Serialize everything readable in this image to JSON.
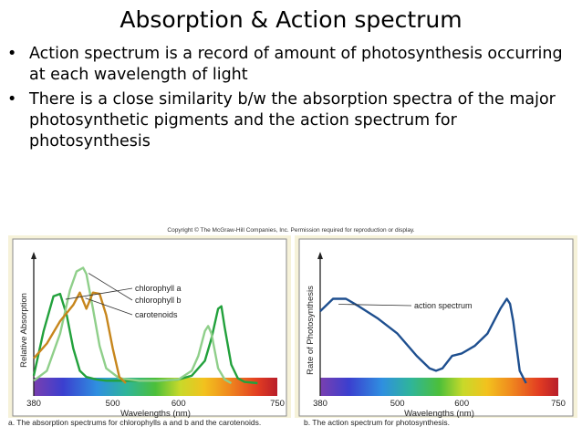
{
  "title": "Absorption & Action spectrum",
  "bullets": [
    "Action spectrum is a record of amount of photosynthesis occurring at each wavelength of light",
    "There is a close similarity b/w the absorption spectra of the major photosynthetic pigments and the action spectrum for photosynthesis"
  ],
  "copyright": "Copyright © The McGraw-Hill Companies, Inc. Permission required for reproduction or display.",
  "chart_data": [
    {
      "type": "line",
      "caption": "a. The absorption spectrums for chlorophylls a and b and the carotenoids.",
      "xlabel": "Wavelengths (nm)",
      "ylabel": "Relative Absorption",
      "xlim": [
        380,
        750
      ],
      "ylim": [
        0,
        1
      ],
      "xticks": [
        380,
        500,
        600,
        750
      ],
      "legend_position": "annotations with leader lines, top-right",
      "series": [
        {
          "name": "chlorophyll a",
          "color": "#22a13c",
          "x": [
            380,
            395,
            410,
            420,
            430,
            440,
            450,
            460,
            475,
            490,
            510,
            540,
            570,
            600,
            620,
            640,
            650,
            660,
            665,
            670,
            680,
            690,
            700,
            720
          ],
          "y": [
            0.06,
            0.42,
            0.7,
            0.72,
            0.55,
            0.28,
            0.1,
            0.05,
            0.03,
            0.02,
            0.02,
            0.02,
            0.02,
            0.03,
            0.06,
            0.18,
            0.36,
            0.6,
            0.62,
            0.45,
            0.15,
            0.04,
            0.01,
            0.0
          ]
        },
        {
          "name": "chlorophyll b",
          "color": "#8fcf8a",
          "x": [
            380,
            400,
            420,
            435,
            445,
            455,
            460,
            470,
            480,
            490,
            510,
            540,
            570,
            600,
            620,
            630,
            640,
            645,
            650,
            660,
            670,
            680
          ],
          "y": [
            0.02,
            0.1,
            0.4,
            0.75,
            0.9,
            0.93,
            0.88,
            0.6,
            0.3,
            0.12,
            0.04,
            0.02,
            0.02,
            0.03,
            0.1,
            0.22,
            0.42,
            0.46,
            0.4,
            0.12,
            0.03,
            0.0
          ]
        },
        {
          "name": "carotenoids",
          "color": "#c7861c",
          "x": [
            380,
            400,
            420,
            440,
            450,
            460,
            470,
            480,
            490,
            500,
            510,
            520
          ],
          "y": [
            0.2,
            0.32,
            0.5,
            0.63,
            0.73,
            0.6,
            0.73,
            0.72,
            0.55,
            0.28,
            0.05,
            0.0
          ]
        }
      ]
    },
    {
      "type": "line",
      "caption": "b. The action spectrum for photosynthesis.",
      "xlabel": "Wavelengths (nm)",
      "ylabel": "Rate of Photosynthesis",
      "xlim": [
        380,
        750
      ],
      "ylim": [
        0,
        1
      ],
      "xticks": [
        380,
        500,
        600,
        750
      ],
      "series": [
        {
          "name": "action spectrum",
          "color": "#1e4f8f",
          "x": [
            380,
            400,
            420,
            440,
            470,
            500,
            530,
            550,
            560,
            570,
            585,
            600,
            620,
            640,
            660,
            670,
            675,
            680,
            690,
            700
          ],
          "y": [
            0.58,
            0.68,
            0.68,
            0.62,
            0.52,
            0.4,
            0.22,
            0.12,
            0.1,
            0.12,
            0.22,
            0.24,
            0.3,
            0.4,
            0.6,
            0.68,
            0.64,
            0.5,
            0.1,
            0.0
          ]
        }
      ]
    }
  ]
}
